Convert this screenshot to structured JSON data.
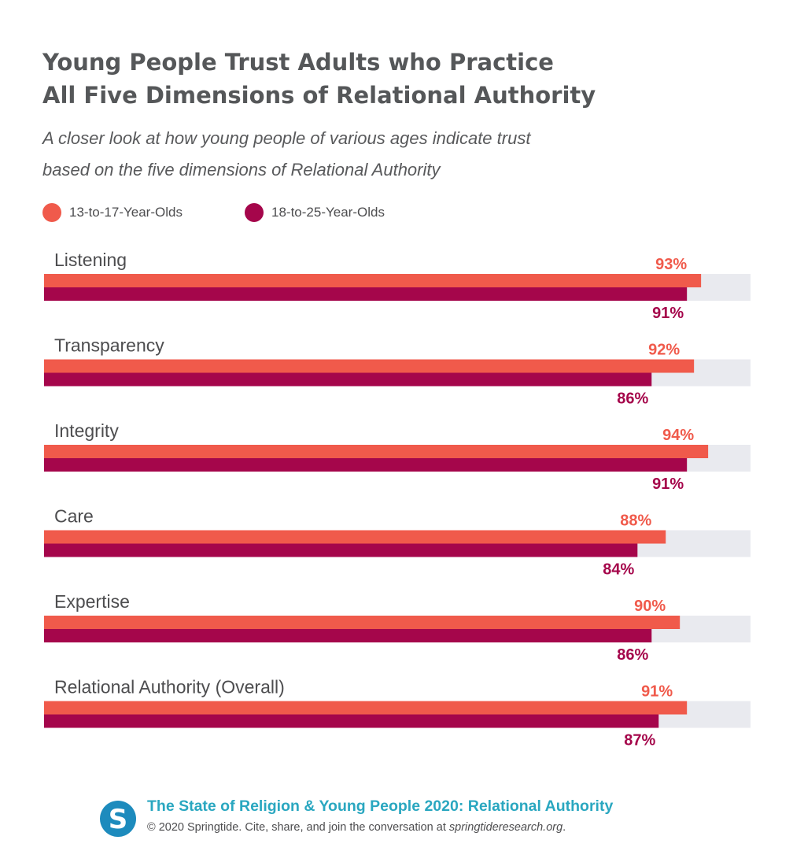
{
  "header": {
    "title_line1": "Young People Trust Adults who Practice",
    "title_line2": "All Five Dimensions of Relational Authority",
    "subtitle_line1": "A closer look at how young people of various ages indicate trust",
    "subtitle_line2": "based on the five dimensions of Relational Authority"
  },
  "chart_data": {
    "type": "bar",
    "orientation": "horizontal",
    "categories": [
      "Listening",
      "Transparency",
      "Integrity",
      "Care",
      "Expertise",
      "Relational Authority (Overall)"
    ],
    "series": [
      {
        "name": "13-to-17-Year-Olds",
        "values": [
          93,
          92,
          94,
          88,
          90,
          91
        ],
        "labels": [
          "93%",
          "92%",
          "94%",
          "88%",
          "90%",
          "91%"
        ],
        "color": "#f05a4b"
      },
      {
        "name": "18-to-25-Year-Olds",
        "values": [
          91,
          86,
          91,
          84,
          86,
          87
        ],
        "labels": [
          "91%",
          "86%",
          "91%",
          "84%",
          "86%",
          "87%"
        ],
        "color": "#a5064b"
      }
    ],
    "xlim": [
      0,
      100
    ],
    "background_track_color": "#e9eaef",
    "legend_position": "top-left",
    "grid": false
  },
  "footer": {
    "logo_letter": "S",
    "title": "The State of Religion & Young People 2020: Relational Authority",
    "copyright_prefix": "© 2020 Springtide. Cite, share, and join the conversation at ",
    "copyright_link": "springtideresearch.org",
    "copyright_suffix": ".",
    "brand_color": "#2aa7c0",
    "logo_color": "#1d8bbd"
  }
}
